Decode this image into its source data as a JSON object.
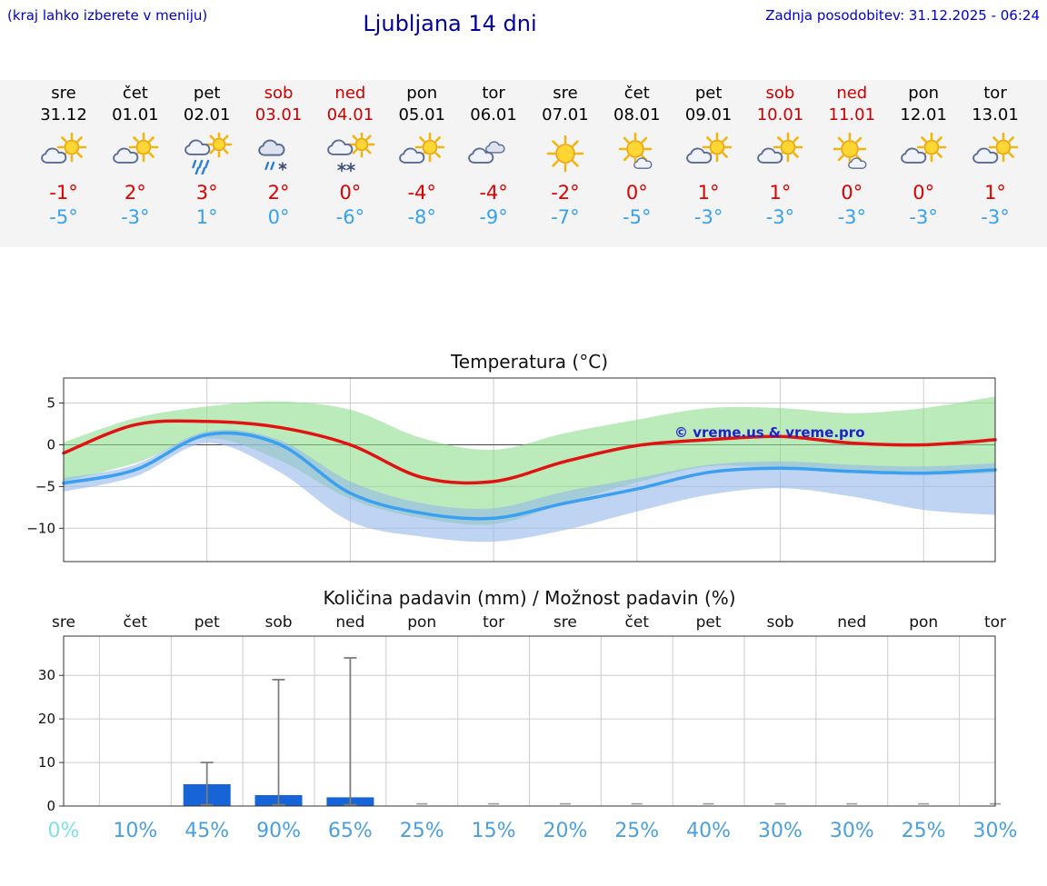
{
  "header": {
    "menu_hint": "(kraj lahko izberete v meniju)",
    "title": "Ljubljana 14 dni",
    "last_update": "Zadnja posodobitev: 31.12.2025 - 06:24"
  },
  "colors": {
    "link_blue": "#0000cc",
    "title_navy": "#000099",
    "weekend_red": "#cc0000",
    "temp_high_red": "#dd0000",
    "temp_low_blue": "#38a1ee",
    "strip_background": "#f4f4f4",
    "max_band_green": "#8edc8e",
    "min_band_blue": "#92b8ea",
    "bar_blue": "#1763d8"
  },
  "forecast_days": [
    {
      "name": "sre",
      "date": "31.12",
      "weekend": false,
      "icon": "sun-cloud",
      "tmax": "-1°",
      "tmin": "-5°"
    },
    {
      "name": "čet",
      "date": "01.01",
      "weekend": false,
      "icon": "sun-cloud",
      "tmax": "2°",
      "tmin": "-3°"
    },
    {
      "name": "pet",
      "date": "02.01",
      "weekend": false,
      "icon": "rain",
      "tmax": "3°",
      "tmin": "1°"
    },
    {
      "name": "sob",
      "date": "03.01",
      "weekend": true,
      "icon": "sleet",
      "tmax": "2°",
      "tmin": "0°"
    },
    {
      "name": "ned",
      "date": "04.01",
      "weekend": true,
      "icon": "snow",
      "tmax": "0°",
      "tmin": "-6°"
    },
    {
      "name": "pon",
      "date": "05.01",
      "weekend": false,
      "icon": "sun-cloud",
      "tmax": "-4°",
      "tmin": "-8°"
    },
    {
      "name": "tor",
      "date": "06.01",
      "weekend": false,
      "icon": "cloudy",
      "tmax": "-4°",
      "tmin": "-9°"
    },
    {
      "name": "sre",
      "date": "07.01",
      "weekend": false,
      "icon": "sunny",
      "tmax": "-2°",
      "tmin": "-7°"
    },
    {
      "name": "čet",
      "date": "08.01",
      "weekend": false,
      "icon": "mostly-sunny",
      "tmax": "0°",
      "tmin": "-5°"
    },
    {
      "name": "pet",
      "date": "09.01",
      "weekend": false,
      "icon": "sun-cloud",
      "tmax": "1°",
      "tmin": "-3°"
    },
    {
      "name": "sob",
      "date": "10.01",
      "weekend": true,
      "icon": "sun-cloud",
      "tmax": "1°",
      "tmin": "-3°"
    },
    {
      "name": "ned",
      "date": "11.01",
      "weekend": true,
      "icon": "mostly-sunny",
      "tmax": "0°",
      "tmin": "-3°"
    },
    {
      "name": "pon",
      "date": "12.01",
      "weekend": false,
      "icon": "sun-cloud",
      "tmax": "0°",
      "tmin": "-3°"
    },
    {
      "name": "tor",
      "date": "13.01",
      "weekend": false,
      "icon": "sun-cloud",
      "tmax": "1°",
      "tmin": "-3°"
    }
  ],
  "chart_data": [
    {
      "type": "line",
      "title": "Temperatura (°C)",
      "ylim": [
        -14,
        8
      ],
      "yticks": [
        5,
        0,
        -5,
        -10
      ],
      "grid": true,
      "legend": "none",
      "watermark": "© vreme.us & vreme.pro",
      "series": [
        {
          "name": "max-temperature",
          "color": "#e01212",
          "values": [
            -1,
            2.4,
            2.8,
            2.1,
            0,
            -3.9,
            -4.4,
            -2,
            -0.1,
            0.6,
            1,
            0.2,
            0,
            0.6
          ]
        },
        {
          "name": "min-temperature",
          "color": "#3b9ff2",
          "values": [
            -4.6,
            -3,
            1.2,
            0.1,
            -5.8,
            -8.2,
            -8.8,
            -7,
            -5.3,
            -3.3,
            -2.8,
            -3.2,
            -3.4,
            -3
          ]
        }
      ],
      "bands": [
        {
          "name": "max-temperature-range",
          "color": "#8edc8e",
          "upper": [
            0.3,
            3.2,
            4.6,
            5.2,
            4.2,
            0.8,
            -0.6,
            1.4,
            3,
            4.4,
            4.4,
            3.8,
            4.4,
            5.8
          ],
          "lower": [
            -4.4,
            -2.2,
            0.8,
            -1.8,
            -6.5,
            -8.8,
            -9.5,
            -7,
            -4.5,
            -2.6,
            -2.8,
            -3.2,
            -3.6,
            -3.4
          ]
        },
        {
          "name": "min-temperature-range",
          "color": "#92b8ea",
          "upper": [
            -4,
            -2.4,
            1.6,
            0.6,
            -4.4,
            -7,
            -7.6,
            -5.6,
            -4,
            -2.4,
            -2,
            -2.4,
            -2.6,
            -2.2
          ],
          "lower": [
            -5.6,
            -3.8,
            0.2,
            -3.2,
            -9.2,
            -11,
            -11.6,
            -10.2,
            -8,
            -6,
            -5.2,
            -6.2,
            -7.8,
            -8.4
          ]
        }
      ]
    },
    {
      "type": "bar",
      "title": "Količina padavin (mm) / Možnost padavin (%)",
      "categories": [
        "sre",
        "čet",
        "pet",
        "sob",
        "ned",
        "pon",
        "tor",
        "sre",
        "čet",
        "pet",
        "sob",
        "ned",
        "pon",
        "tor"
      ],
      "values": [
        0,
        0,
        5,
        2.5,
        2,
        0,
        0,
        0,
        0,
        0,
        0,
        0,
        0,
        0
      ],
      "whisker_max": [
        0,
        0,
        10,
        29,
        34,
        0.5,
        0.5,
        0.5,
        0.5,
        0.5,
        0.5,
        0.5,
        0.5,
        0.5
      ],
      "ylim": [
        0,
        39
      ],
      "yticks": [
        0,
        10,
        20,
        30
      ],
      "grid": true,
      "bar_color": "#1763d8",
      "whisker_color": "#7d7d7d",
      "probabilities": [
        {
          "label": "0%",
          "color": "#7de2e6"
        },
        {
          "label": "10%",
          "color": "#4a9fdd"
        },
        {
          "label": "45%",
          "color": "#4a9fdd"
        },
        {
          "label": "90%",
          "color": "#4a9fdd"
        },
        {
          "label": "65%",
          "color": "#4a9fdd"
        },
        {
          "label": "25%",
          "color": "#4a9fdd"
        },
        {
          "label": "15%",
          "color": "#4a9fdd"
        },
        {
          "label": "20%",
          "color": "#4a9fdd"
        },
        {
          "label": "25%",
          "color": "#4a9fdd"
        },
        {
          "label": "40%",
          "color": "#4a9fdd"
        },
        {
          "label": "30%",
          "color": "#4a9fdd"
        },
        {
          "label": "30%",
          "color": "#4a9fdd"
        },
        {
          "label": "25%",
          "color": "#4a9fdd"
        },
        {
          "label": "30%",
          "color": "#4a9fdd"
        }
      ]
    }
  ]
}
